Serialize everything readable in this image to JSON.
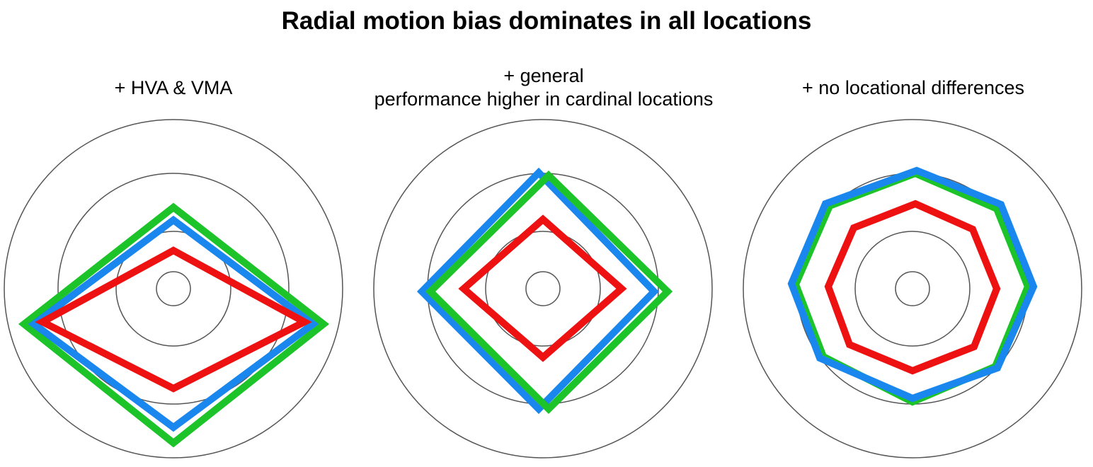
{
  "title": "Radial motion bias dominates in all locations",
  "panels": [
    {
      "label_lines": [
        "+ HVA & VMA"
      ]
    },
    {
      "label_lines": [
        "+ general",
        "performance higher in cardinal locations"
      ]
    },
    {
      "label_lines": [
        "+ no locational differences"
      ]
    }
  ],
  "colors": {
    "ring": "#555555",
    "red": "#ee1111",
    "blue": "#1a87ee",
    "green": "#1cc42a"
  }
}
